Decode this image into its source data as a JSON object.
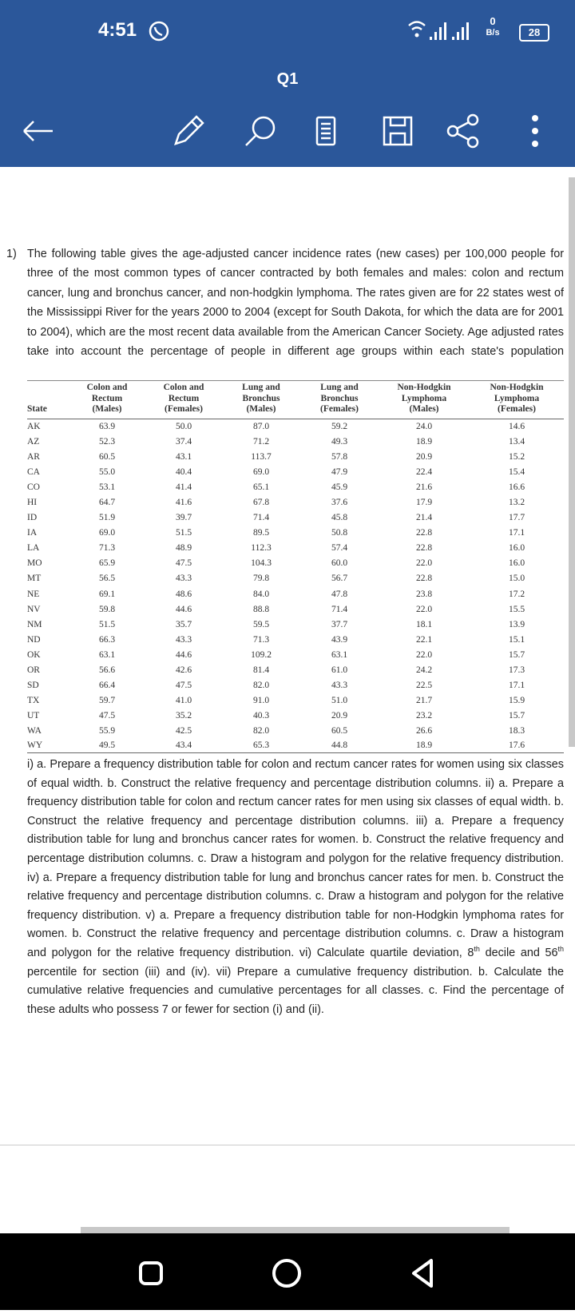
{
  "status_bar": {
    "time": "4:51",
    "net_speed_value": "0",
    "net_speed_unit": "B/s",
    "battery": "28"
  },
  "toolbar": {
    "page_label": "Q1"
  },
  "document": {
    "number": "1)",
    "intro": "The following table gives the age-adjusted cancer incidence rates (new cases) per 100,000 people for three of the most common types of cancer contracted by both females and males: colon and rectum cancer, lung and bronchus cancer, and non-hodgkin lymphoma. The rates given are for 22 states west of the Mississippi River for the years 2000 to 2004 (except for South Dakota, for which the data are for 2001 to 2004), which are the most recent data available from the American Cancer Society. Age adjusted rates take into account the percentage of people in different age groups within each state's population",
    "table": {
      "headers": [
        [
          "State"
        ],
        [
          "Colon and",
          "Rectum",
          "(Males)"
        ],
        [
          "Colon and",
          "Rectum",
          "(Females)"
        ],
        [
          "Lung and",
          "Bronchus",
          "(Males)"
        ],
        [
          "Lung and",
          "Bronchus",
          "(Females)"
        ],
        [
          "Non-Hodgkin",
          "Lymphoma",
          "(Males)"
        ],
        [
          "Non-Hodgkin",
          "Lymphoma",
          "(Females)"
        ]
      ],
      "rows": [
        [
          "AK",
          "63.9",
          "50.0",
          "87.0",
          "59.2",
          "24.0",
          "14.6"
        ],
        [
          "AZ",
          "52.3",
          "37.4",
          "71.2",
          "49.3",
          "18.9",
          "13.4"
        ],
        [
          "AR",
          "60.5",
          "43.1",
          "113.7",
          "57.8",
          "20.9",
          "15.2"
        ],
        [
          "CA",
          "55.0",
          "40.4",
          "69.0",
          "47.9",
          "22.4",
          "15.4"
        ],
        [
          "CO",
          "53.1",
          "41.4",
          "65.1",
          "45.9",
          "21.6",
          "16.6"
        ],
        [
          "HI",
          "64.7",
          "41.6",
          "67.8",
          "37.6",
          "17.9",
          "13.2"
        ],
        [
          "ID",
          "51.9",
          "39.7",
          "71.4",
          "45.8",
          "21.4",
          "17.7"
        ],
        [
          "IA",
          "69.0",
          "51.5",
          "89.5",
          "50.8",
          "22.8",
          "17.1"
        ],
        [
          "LA",
          "71.3",
          "48.9",
          "112.3",
          "57.4",
          "22.8",
          "16.0"
        ],
        [
          "MO",
          "65.9",
          "47.5",
          "104.3",
          "60.0",
          "22.0",
          "16.0"
        ],
        [
          "MT",
          "56.5",
          "43.3",
          "79.8",
          "56.7",
          "22.8",
          "15.0"
        ],
        [
          "NE",
          "69.1",
          "48.6",
          "84.0",
          "47.8",
          "23.8",
          "17.2"
        ],
        [
          "NV",
          "59.8",
          "44.6",
          "88.8",
          "71.4",
          "22.0",
          "15.5"
        ],
        [
          "NM",
          "51.5",
          "35.7",
          "59.5",
          "37.7",
          "18.1",
          "13.9"
        ],
        [
          "ND",
          "66.3",
          "43.3",
          "71.3",
          "43.9",
          "22.1",
          "15.1"
        ],
        [
          "OK",
          "63.1",
          "44.6",
          "109.2",
          "63.1",
          "22.0",
          "15.7"
        ],
        [
          "OR",
          "56.6",
          "42.6",
          "81.4",
          "61.0",
          "24.2",
          "17.3"
        ],
        [
          "SD",
          "66.4",
          "47.5",
          "82.0",
          "43.3",
          "22.5",
          "17.1"
        ],
        [
          "TX",
          "59.7",
          "41.0",
          "91.0",
          "51.0",
          "21.7",
          "15.9"
        ],
        [
          "UT",
          "47.5",
          "35.2",
          "40.3",
          "20.9",
          "23.2",
          "15.7"
        ],
        [
          "WA",
          "55.9",
          "42.5",
          "82.0",
          "60.5",
          "26.6",
          "18.3"
        ],
        [
          "WY",
          "49.5",
          "43.4",
          "65.3",
          "44.8",
          "18.9",
          "17.6"
        ]
      ]
    },
    "questions": [
      "i) a. Prepare a frequency distribution table for colon and rectum cancer rates for women using six classes of equal width. b. Construct the relative frequency and percentage distribution columns. ii) a. Prepare a frequency distribution table for colon and rectum cancer rates for men using six classes of equal width. b. Construct the relative frequency and percentage distribution columns. iii) a. Prepare a frequency distribution table for lung and bronchus cancer rates for women. b. Construct the relative frequency and percentage distribution columns. c. Draw a histogram and polygon for the relative frequency distribution. iv) a. Prepare a frequency distribution table for lung and bronchus cancer rates for men. b. Construct the relative frequency and percentage distribution columns. c. Draw a histogram and polygon for the relative frequency distribution. v) a. Prepare a frequency distribution table for non-Hodgkin lymphoma rates for women. b. Construct the relative frequency and percentage distribution columns. c. Draw a histogram and polygon for the relative frequency distribution. vi) Calculate quartile deviation, 8",
      "th",
      " decile and 56",
      "th",
      " percentile for section (iii) and (iv). vii) Prepare a cumulative frequency distribution. b. Calculate the cumulative relative frequencies and cumulative percentages for all classes. c. Find the percentage of these adults who possess 7 or fewer for section (i) and (ii)."
    ]
  }
}
